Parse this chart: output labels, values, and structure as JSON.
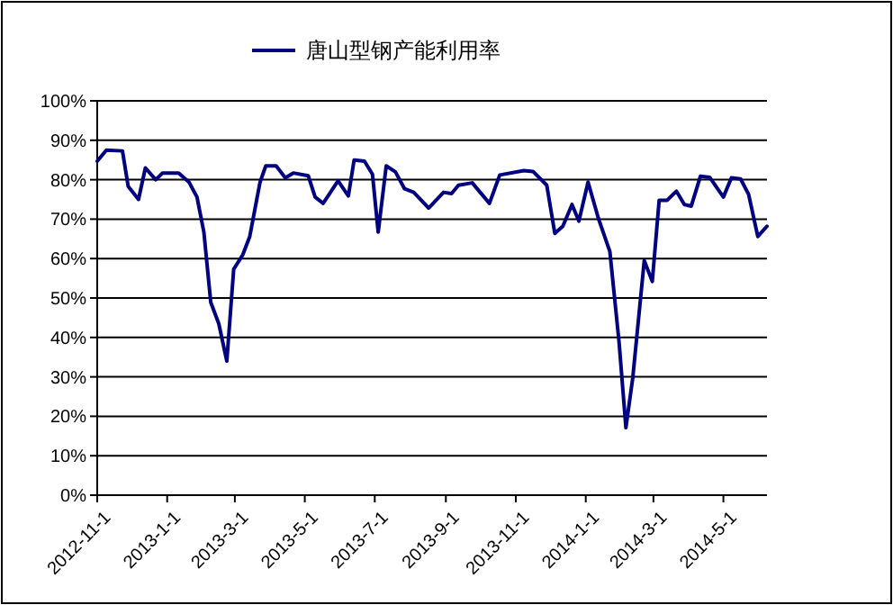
{
  "chart_data": {
    "type": "line",
    "x": [
      "2012-11-01",
      "2012-11-09",
      "2012-11-23",
      "2012-11-28",
      "2012-12-07",
      "2012-12-13",
      "2012-12-22",
      "2012-12-28",
      "2013-01-11",
      "2013-01-20",
      "2013-01-27",
      "2013-02-02",
      "2013-02-08",
      "2013-02-15",
      "2013-02-22",
      "2013-02-28",
      "2013-03-08",
      "2013-03-14",
      "2013-03-23",
      "2013-03-28",
      "2013-04-06",
      "2013-04-14",
      "2013-04-21",
      "2013-05-04",
      "2013-05-10",
      "2013-05-17",
      "2013-05-30",
      "2013-06-08",
      "2013-06-13",
      "2013-06-22",
      "2013-06-29",
      "2013-07-04",
      "2013-07-11",
      "2013-07-19",
      "2013-07-27",
      "2013-08-04",
      "2013-08-17",
      "2013-08-30",
      "2013-09-06",
      "2013-09-12",
      "2013-09-24",
      "2013-10-09",
      "2013-10-18",
      "2013-11-08",
      "2013-11-16",
      "2013-11-28",
      "2013-12-05",
      "2013-12-12",
      "2013-12-20",
      "2013-12-26",
      "2014-01-03",
      "2014-01-12",
      "2014-01-22",
      "2014-01-30",
      "2014-02-05",
      "2014-02-11",
      "2014-02-21",
      "2014-02-28",
      "2014-03-06",
      "2014-03-13",
      "2014-03-21",
      "2014-03-28",
      "2014-04-03",
      "2014-04-11",
      "2014-04-19",
      "2014-05-01",
      "2014-05-08",
      "2014-05-16",
      "2014-05-23",
      "2014-05-31",
      "2014-06-08"
    ],
    "series": [
      {
        "name": "唐山型钢产能利用率",
        "color": "#000080",
        "values": [
          84.7,
          87.5,
          87.3,
          78.3,
          75,
          83,
          80,
          81.7,
          81.7,
          79.4,
          75.6,
          66.7,
          48.9,
          43.5,
          34,
          57.3,
          61,
          65.6,
          79.4,
          83.5,
          83.5,
          80.5,
          81.7,
          81,
          75.6,
          74,
          79.7,
          75.9,
          85,
          84.7,
          81.4,
          66.7,
          83.5,
          82,
          77.7,
          76.8,
          72.8,
          76.8,
          76.5,
          78.6,
          79.2,
          74,
          81.2,
          82.3,
          82.1,
          78.6,
          66.4,
          68.2,
          73.7,
          69.5,
          79.4,
          70.2,
          61.8,
          38.9,
          17.1,
          29.8,
          59.5,
          54.2,
          74.8,
          74.8,
          77.1,
          73.7,
          73.3,
          80.9,
          80.6,
          75.6,
          80.5,
          80.2,
          76.3,
          65.6,
          68.2
        ]
      }
    ],
    "xlim": [
      "2012-11-01",
      "2014-06-08"
    ],
    "xticks": [
      {
        "value": "2012-11-01",
        "label": "2012-11-1"
      },
      {
        "value": "2013-01-01",
        "label": "2013-1-1"
      },
      {
        "value": "2013-03-01",
        "label": "2013-3-1"
      },
      {
        "value": "2013-05-01",
        "label": "2013-5-1"
      },
      {
        "value": "2013-07-01",
        "label": "2013-7-1"
      },
      {
        "value": "2013-09-01",
        "label": "2013-9-1"
      },
      {
        "value": "2013-11-01",
        "label": "2013-11-1"
      },
      {
        "value": "2014-01-01",
        "label": "2014-1-1"
      },
      {
        "value": "2014-03-01",
        "label": "2014-3-1"
      },
      {
        "value": "2014-05-01",
        "label": "2014-5-1"
      }
    ],
    "ylim": [
      0,
      100
    ],
    "yticks": [
      {
        "value": 0,
        "label": "0%"
      },
      {
        "value": 10,
        "label": "10%"
      },
      {
        "value": 20,
        "label": "20%"
      },
      {
        "value": 30,
        "label": "30%"
      },
      {
        "value": 40,
        "label": "40%"
      },
      {
        "value": 50,
        "label": "50%"
      },
      {
        "value": 60,
        "label": "60%"
      },
      {
        "value": 70,
        "label": "70%"
      },
      {
        "value": 80,
        "label": "80%"
      },
      {
        "value": 90,
        "label": "90%"
      },
      {
        "value": 100,
        "label": "100%"
      }
    ],
    "grid": "y",
    "legend": "top",
    "marker": "none",
    "line_style": "solid"
  }
}
